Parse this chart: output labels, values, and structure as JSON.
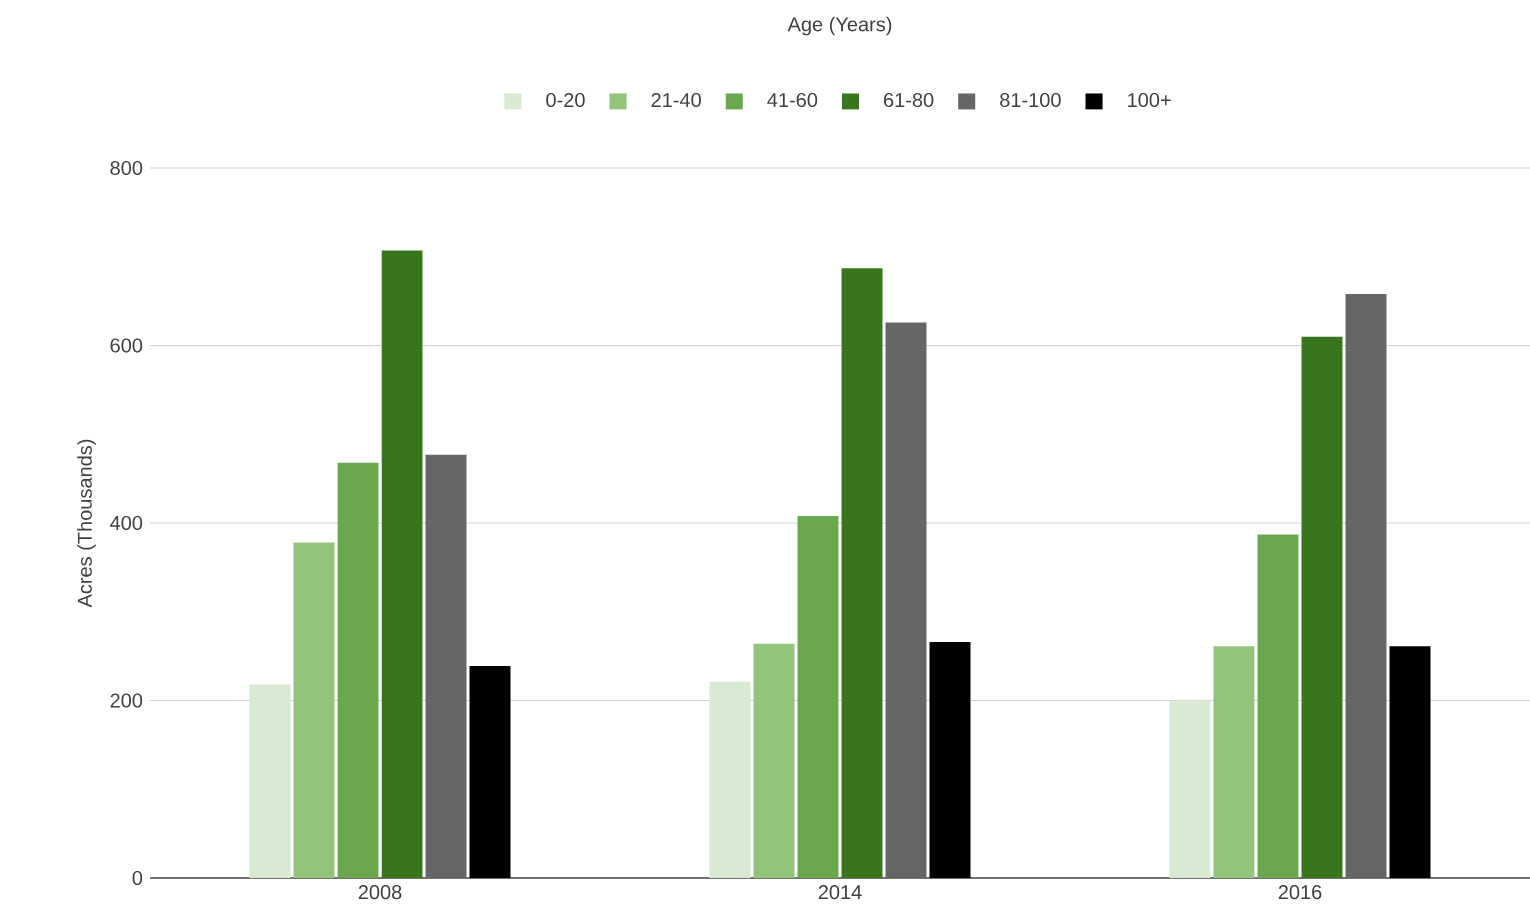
{
  "chart_data": {
    "type": "bar",
    "legend_title": "Age (Years)",
    "ylabel": "Acres (Thousands)",
    "categories": [
      "2008",
      "2014",
      "2016"
    ],
    "series": [
      {
        "name": "0-20",
        "color": "#d9ead3",
        "values": [
          218,
          221,
          200
        ]
      },
      {
        "name": "21-40",
        "color": "#93c47d",
        "values": [
          378,
          264,
          261
        ]
      },
      {
        "name": "41-60",
        "color": "#6aa84f",
        "values": [
          468,
          408,
          387
        ]
      },
      {
        "name": "61-80",
        "color": "#38761d",
        "values": [
          707,
          687,
          610
        ]
      },
      {
        "name": "81-100",
        "color": "#666666",
        "values": [
          477,
          626,
          658
        ]
      },
      {
        "name": "100+",
        "color": "#000000",
        "values": [
          239,
          266,
          261
        ]
      }
    ],
    "ylim": [
      0,
      800
    ],
    "yticks": [
      0,
      200,
      400,
      600,
      800
    ],
    "grid": "y",
    "legend": "top"
  }
}
